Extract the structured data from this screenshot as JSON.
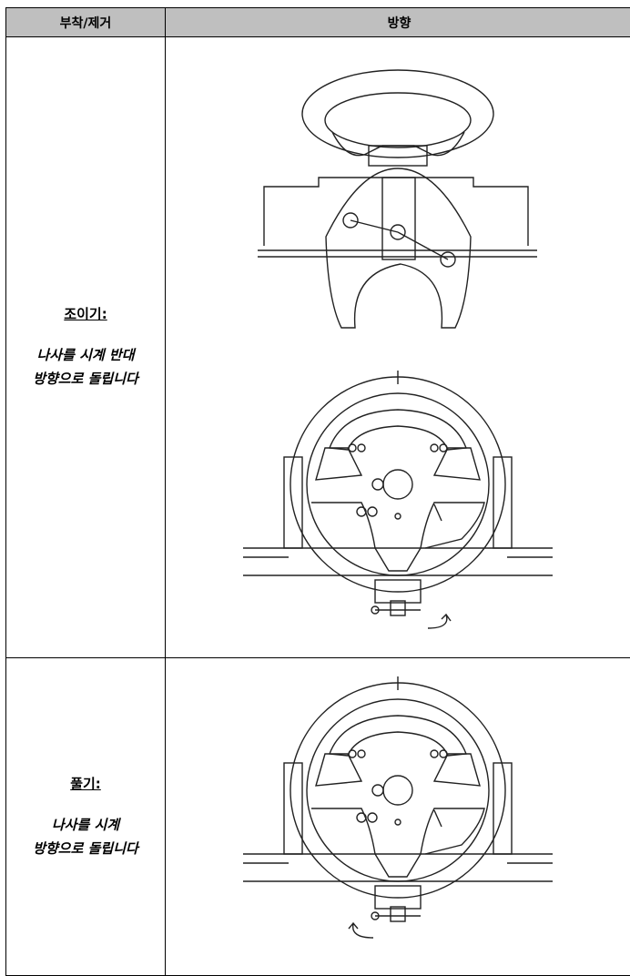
{
  "table": {
    "header": [
      "부착/제거",
      "방향"
    ],
    "rows": [
      {
        "action": "조이기:",
        "instruction": [
          "나사를 시계 반대",
          "방향으로 돌립니다"
        ]
      },
      {
        "action": "풀기:",
        "instruction": [
          "나사를 시계",
          "방향으로 돌립니다"
        ]
      }
    ]
  }
}
